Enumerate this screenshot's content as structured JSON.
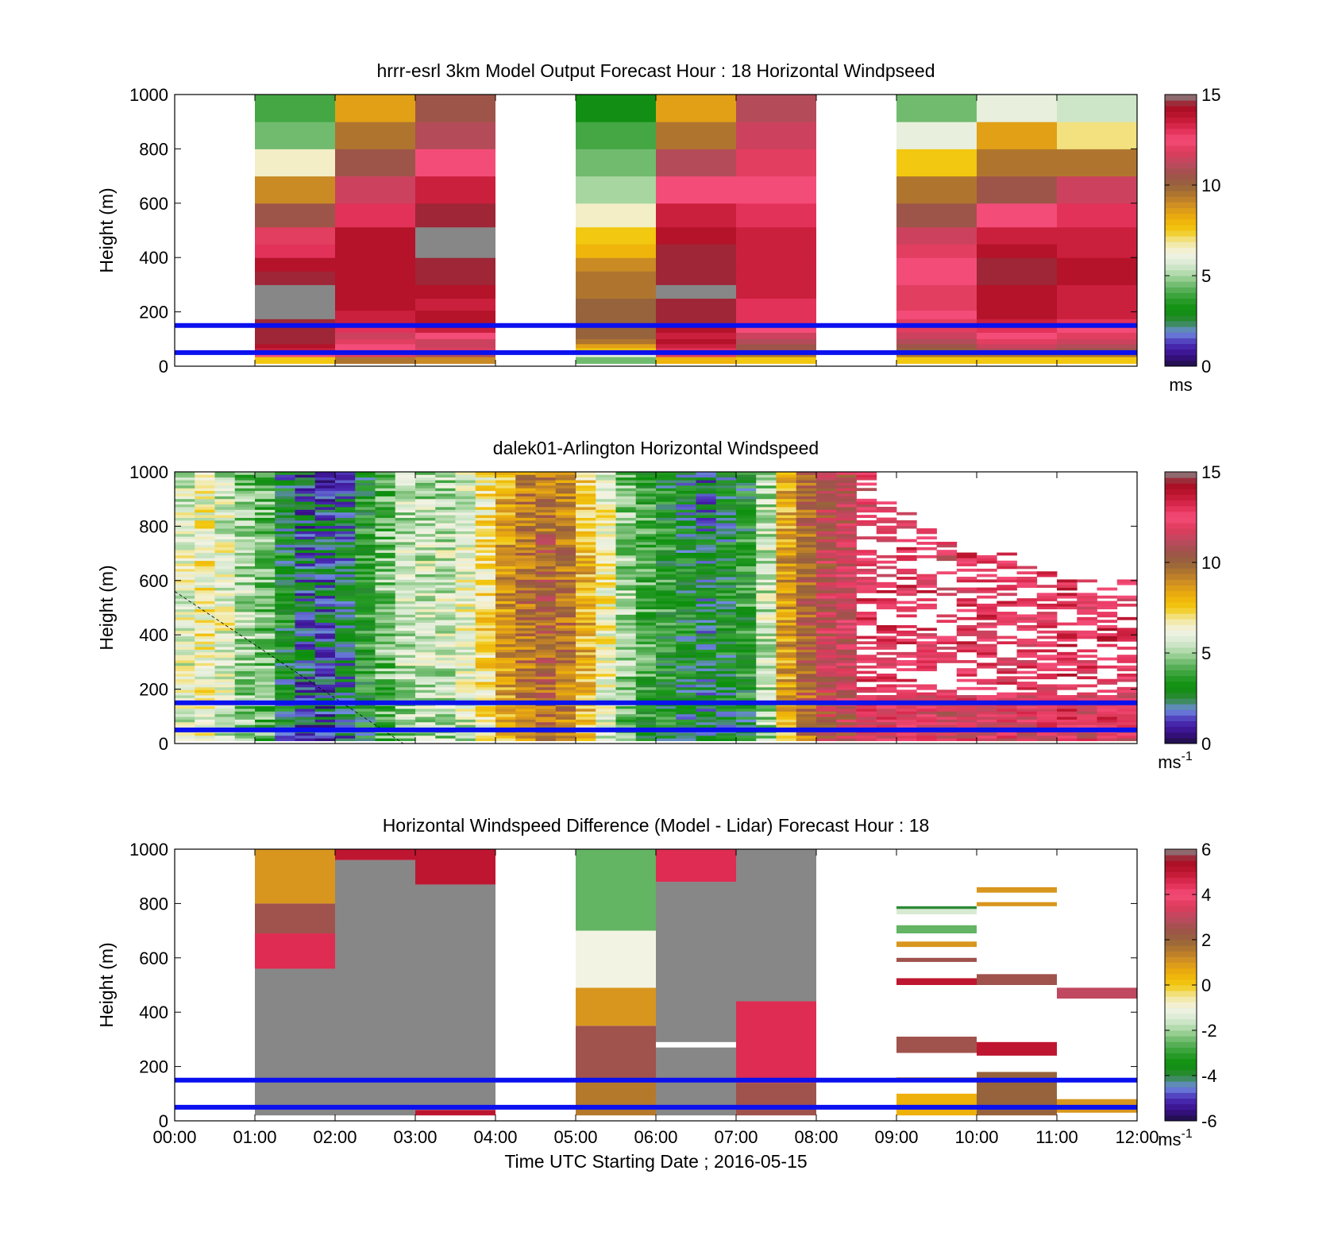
{
  "colors": {
    "speed_scale": [
      "#1c1040",
      "#3a0f8a",
      "#4a2db5",
      "#6f8ce0",
      "#2e8a38",
      "#0b8f0b",
      "#2f9e2f",
      "#63b463",
      "#a7d6a0",
      "#d8ead2",
      "#f3f3e4",
      "#f2e79a",
      "#f2c810",
      "#eeb00a",
      "#d8961e",
      "#b5792c",
      "#96633c",
      "#a0524c",
      "#c04860",
      "#de3a5a",
      "#f44c78",
      "#de2c52",
      "#be1630",
      "#a40e22",
      "#878787"
    ],
    "diff_scale": [
      "#1c1040",
      "#3a0f8a",
      "#4a2db5",
      "#6f8ce0",
      "#2e8a38",
      "#0b8f0b",
      "#2f9e2f",
      "#63b463",
      "#a7d6a0",
      "#d8ead2",
      "#f3f3e4",
      "#f2e79a",
      "#f2c810",
      "#eeb00a",
      "#d8961e",
      "#b5792c",
      "#96633c",
      "#a0524c",
      "#c04860",
      "#de3a5a",
      "#f44c78",
      "#de2c52",
      "#be1630",
      "#a40e22",
      "#878787"
    ],
    "reference_lines": "#0a10ee"
  },
  "chart_data": [
    {
      "type": "heatmap",
      "title": "hrrr-esrl 3km Model Output   Forecast Hour : 18 Horizontal Windpseed",
      "ylabel": "Height (m)",
      "xlabel": "",
      "ylim": [
        0,
        1000
      ],
      "yticks": [
        "0",
        "200",
        "400",
        "600",
        "800",
        "1000"
      ],
      "xlim_hours": [
        0,
        12
      ],
      "colorbar": {
        "ticks": [
          "0",
          "5",
          "10",
          "15"
        ],
        "range": [
          0,
          15
        ],
        "unit": "ms",
        "unit_sup": ""
      },
      "reference_lines_m": [
        50,
        150
      ],
      "levels_m": [
        25,
        45,
        60,
        75,
        90,
        112,
        137,
        162,
        187,
        225,
        275,
        325,
        375,
        425,
        475,
        550,
        650,
        750,
        850,
        950
      ],
      "columns": [
        {
          "hour_start": 1,
          "hour_end": 2,
          "values": [
            7.5,
            12.5,
            13.5,
            14,
            14.5,
            14.5,
            14.5,
            14.5,
            15,
            15,
            15,
            14.5,
            14,
            13,
            12,
            10.5,
            9,
            6.5,
            4.5,
            4
          ]
        },
        {
          "hour_start": 2,
          "hour_end": 3,
          "values": [
            9.5,
            12,
            12.5,
            12.5,
            12,
            11.5,
            13,
            13.5,
            13.5,
            14,
            14,
            14,
            14,
            14,
            14,
            13,
            11.5,
            10.5,
            9.5,
            8.5
          ]
        },
        {
          "hour_start": 3,
          "hour_end": 4,
          "values": [
            9,
            11,
            12,
            11.5,
            11.5,
            12.5,
            13.5,
            14,
            14,
            13.5,
            14,
            14.5,
            14.5,
            15,
            15,
            14.5,
            13.5,
            12.5,
            11,
            10.5
          ]
        },
        {
          "hour_start": 5,
          "hour_end": 6,
          "values": [
            4.5,
            6,
            7.5,
            8.5,
            9.5,
            10,
            10,
            10,
            10,
            10,
            9.5,
            9.5,
            9,
            8,
            7.5,
            6.5,
            5,
            4.5,
            4,
            3
          ]
        },
        {
          "hour_start": 6,
          "hour_end": 7,
          "values": [
            8,
            12,
            13,
            13.5,
            14,
            13.5,
            14,
            14.5,
            14.5,
            14.5,
            15,
            14.5,
            14.5,
            14.5,
            14,
            13.5,
            12.5,
            11,
            9.5,
            8.5
          ]
        },
        {
          "hour_start": 7,
          "hour_end": 8,
          "values": [
            7.5,
            9.5,
            10.5,
            10.5,
            11,
            11.5,
            12.5,
            13,
            13,
            13,
            13.5,
            13.5,
            13.5,
            13.5,
            13.5,
            13,
            12.5,
            12,
            11.5,
            11
          ]
        },
        {
          "hour_start": 9,
          "hour_end": 10,
          "values": [
            7.5,
            9.5,
            10,
            10.5,
            11,
            11.5,
            12,
            12,
            12.5,
            12,
            12,
            12.5,
            12.5,
            12,
            11.5,
            10.5,
            9.5,
            7.5,
            6,
            4.5
          ]
        },
        {
          "hour_start": 10,
          "hour_end": 11,
          "values": [
            7.5,
            9.5,
            11,
            11.5,
            12,
            12.5,
            13,
            13.5,
            14,
            14,
            14,
            14.5,
            14.5,
            14,
            13.5,
            12.5,
            10.5,
            9.5,
            8.5,
            6
          ]
        },
        {
          "hour_start": 11,
          "hour_end": 12,
          "values": [
            7.5,
            9.5,
            10.5,
            11,
            11.5,
            12,
            12.5,
            13,
            13.5,
            13.5,
            13.5,
            14,
            14,
            13.5,
            13.5,
            13,
            11.5,
            9.5,
            7,
            5.5
          ]
        }
      ]
    },
    {
      "type": "heatmap",
      "title": "dalek01-Arlington  Horizontal Windspeed",
      "ylabel": "Height (m)",
      "xlabel": "",
      "ylim": [
        0,
        1000
      ],
      "yticks": [
        "0",
        "200",
        "400",
        "600",
        "800",
        "1000"
      ],
      "xlim_hours": [
        0,
        12
      ],
      "colorbar": {
        "ticks": [
          "0",
          "5",
          "10",
          "15"
        ],
        "range": [
          0,
          15
        ],
        "unit": "ms",
        "unit_sup": "-1"
      },
      "reference_lines_m": [
        50,
        150
      ],
      "time_step_hours": 0.25,
      "height_step_m": 100,
      "speed_profile_by_time": [
        5.5,
        6,
        5.5,
        4.5,
        4,
        2.5,
        1.5,
        1.5,
        2,
        3,
        4,
        5,
        5,
        5,
        5.5,
        6.5,
        8,
        9,
        9.5,
        9,
        7.5,
        6,
        4.5,
        3.5,
        3,
        2.5,
        2,
        2.5,
        3,
        5,
        8,
        9.5,
        10.5,
        11,
        12,
        12,
        12,
        12,
        11.5,
        12,
        12,
        12,
        12,
        12,
        12.5,
        12,
        12.5,
        12
      ],
      "coverage_top_m_after_0830": [
        1000,
        900,
        850,
        800,
        750,
        700,
        700,
        700,
        650,
        650,
        600,
        600,
        600,
        600,
        600
      ]
    },
    {
      "type": "heatmap",
      "title": "Horizontal Windspeed Difference (Model - Lidar) Forecast Hour : 18",
      "ylabel": "Height (m)",
      "xlabel": "Time UTC  Starting Date ; 2016-05-15",
      "ylim": [
        0,
        1000
      ],
      "yticks": [
        "0",
        "200",
        "400",
        "600",
        "800",
        "1000"
      ],
      "xticks": [
        "00:00",
        "01:00",
        "02:00",
        "03:00",
        "04:00",
        "05:00",
        "06:00",
        "07:00",
        "08:00",
        "09:00",
        "10:00",
        "11:00",
        "12:00"
      ],
      "colorbar": {
        "ticks": [
          "-6",
          "-4",
          "-2",
          "0",
          "2",
          "4",
          "6"
        ],
        "range": [
          -6,
          6
        ],
        "unit": "ms",
        "unit_sup": "-1"
      },
      "reference_lines_m": [
        50,
        150
      ],
      "segments": [
        {
          "hour_start": 1,
          "hour_end": 2,
          "height_from_m": 560,
          "height_to_m": 690,
          "value": 4.5
        },
        {
          "hour_start": 1,
          "hour_end": 2,
          "height_from_m": 690,
          "height_to_m": 800,
          "value": 2.5
        },
        {
          "hour_start": 1,
          "hour_end": 2,
          "height_from_m": 800,
          "height_to_m": 1000,
          "value": 1
        },
        {
          "hour_start": 1,
          "hour_end": 2,
          "height_from_m": 20,
          "height_to_m": 560,
          "value": 6
        },
        {
          "hour_start": 2,
          "hour_end": 3,
          "height_from_m": 20,
          "height_to_m": 960,
          "value": 6
        },
        {
          "hour_start": 2,
          "hour_end": 3,
          "height_from_m": 960,
          "height_to_m": 1000,
          "value": 5
        },
        {
          "hour_start": 3,
          "hour_end": 4,
          "height_from_m": 40,
          "height_to_m": 870,
          "value": 6
        },
        {
          "hour_start": 3,
          "hour_end": 4,
          "height_from_m": 870,
          "height_to_m": 1000,
          "value": 5
        },
        {
          "hour_start": 3,
          "hour_end": 4,
          "height_from_m": 20,
          "height_to_m": 40,
          "value": 5
        },
        {
          "hour_start": 5,
          "hour_end": 6,
          "height_from_m": 20,
          "height_to_m": 150,
          "value": 1.5
        },
        {
          "hour_start": 5,
          "hour_end": 6,
          "height_from_m": 150,
          "height_to_m": 350,
          "value": 2.5
        },
        {
          "hour_start": 5,
          "hour_end": 6,
          "height_from_m": 350,
          "height_to_m": 490,
          "value": 1
        },
        {
          "hour_start": 5,
          "hour_end": 6,
          "height_from_m": 490,
          "height_to_m": 700,
          "value": -1
        },
        {
          "hour_start": 5,
          "hour_end": 6,
          "height_from_m": 700,
          "height_to_m": 1000,
          "value": -2.5
        },
        {
          "hour_start": 6,
          "hour_end": 7,
          "height_from_m": 20,
          "height_to_m": 270,
          "value": 6
        },
        {
          "hour_start": 6,
          "hour_end": 7,
          "height_from_m": 290,
          "height_to_m": 880,
          "value": 6
        },
        {
          "hour_start": 6,
          "hour_end": 7,
          "height_from_m": 880,
          "height_to_m": 1000,
          "value": 4.5
        },
        {
          "hour_start": 7,
          "hour_end": 8,
          "height_from_m": 20,
          "height_to_m": 140,
          "value": 2.5
        },
        {
          "hour_start": 7,
          "hour_end": 8,
          "height_from_m": 140,
          "height_to_m": 440,
          "value": 4.5
        },
        {
          "hour_start": 7,
          "hour_end": 8,
          "height_from_m": 440,
          "height_to_m": 1000,
          "value": 6
        },
        {
          "hour_start": 9,
          "hour_end": 10,
          "height_from_m": 20,
          "height_to_m": 100,
          "value": 0.5
        },
        {
          "hour_start": 9,
          "hour_end": 10,
          "height_from_m": 150,
          "height_to_m": 160,
          "value": 1
        },
        {
          "hour_start": 9,
          "hour_end": 10,
          "height_from_m": 250,
          "height_to_m": 310,
          "value": 2.5
        },
        {
          "hour_start": 9,
          "hour_end": 10,
          "height_from_m": 500,
          "height_to_m": 525,
          "value": 5
        },
        {
          "hour_start": 9,
          "hour_end": 10,
          "height_from_m": 585,
          "height_to_m": 600,
          "value": 2.5
        },
        {
          "hour_start": 9,
          "hour_end": 10,
          "height_from_m": 640,
          "height_to_m": 660,
          "value": 1
        },
        {
          "hour_start": 9,
          "hour_end": 10,
          "height_from_m": 690,
          "height_to_m": 720,
          "value": -2.5
        },
        {
          "hour_start": 9,
          "hour_end": 10,
          "height_from_m": 760,
          "height_to_m": 780,
          "value": -1.5
        },
        {
          "hour_start": 9,
          "hour_end": 10,
          "height_from_m": 780,
          "height_to_m": 790,
          "value": -4
        },
        {
          "hour_start": 10,
          "hour_end": 11,
          "height_from_m": 20,
          "height_to_m": 180,
          "value": 2
        },
        {
          "hour_start": 10,
          "hour_end": 11,
          "height_from_m": 240,
          "height_to_m": 290,
          "value": 5
        },
        {
          "hour_start": 10,
          "hour_end": 11,
          "height_from_m": 500,
          "height_to_m": 540,
          "value": 2.5
        },
        {
          "hour_start": 10,
          "hour_end": 11,
          "height_from_m": 790,
          "height_to_m": 805,
          "value": 1
        },
        {
          "hour_start": 10,
          "hour_end": 11,
          "height_from_m": 840,
          "height_to_m": 860,
          "value": 1
        },
        {
          "hour_start": 11,
          "hour_end": 12,
          "height_from_m": 30,
          "height_to_m": 80,
          "value": 1
        },
        {
          "hour_start": 11,
          "hour_end": 12,
          "height_from_m": 450,
          "height_to_m": 490,
          "value": 3
        }
      ]
    }
  ]
}
